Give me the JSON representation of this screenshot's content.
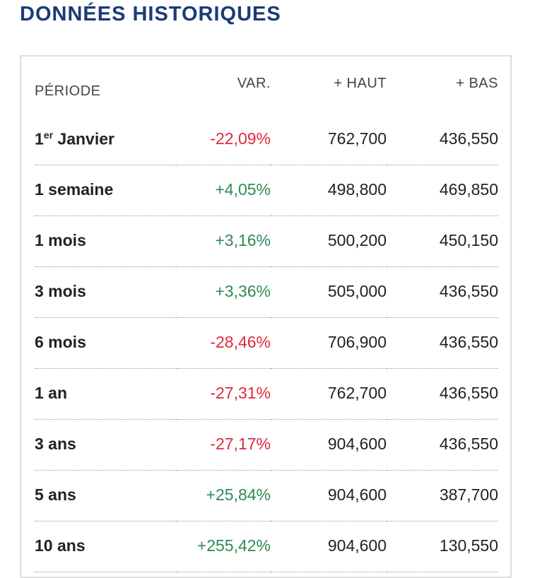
{
  "title": "DONNÉES HISTORIQUES",
  "colors": {
    "title": "#1b3a78",
    "negative": "#e0283c",
    "positive": "#2e8a55"
  },
  "table": {
    "headers": [
      "PÉRIODE",
      "VAR.",
      "+ HAUT",
      "+ BAS"
    ],
    "rows": [
      {
        "period": "1",
        "period_sup": "er",
        "period_rest": " Janvier",
        "var": "-22,09%",
        "high": "762,700",
        "low": "436,550",
        "trend": "neg"
      },
      {
        "period": "1 semaine",
        "var": "+4,05%",
        "high": "498,800",
        "low": "469,850",
        "trend": "pos"
      },
      {
        "period": "1 mois",
        "var": "+3,16%",
        "high": "500,200",
        "low": "450,150",
        "trend": "pos"
      },
      {
        "period": "3 mois",
        "var": "+3,36%",
        "high": "505,000",
        "low": "436,550",
        "trend": "pos"
      },
      {
        "period": "6 mois",
        "var": "-28,46%",
        "high": "706,900",
        "low": "436,550",
        "trend": "neg"
      },
      {
        "period": "1 an",
        "var": "-27,31%",
        "high": "762,700",
        "low": "436,550",
        "trend": "neg"
      },
      {
        "period": "3 ans",
        "var": "-27,17%",
        "high": "904,600",
        "low": "436,550",
        "trend": "neg"
      },
      {
        "period": "5 ans",
        "var": "+25,84%",
        "high": "904,600",
        "low": "387,700",
        "trend": "pos"
      },
      {
        "period": "10 ans",
        "var": "+255,42%",
        "high": "904,600",
        "low": "130,550",
        "trend": "pos"
      }
    ]
  }
}
